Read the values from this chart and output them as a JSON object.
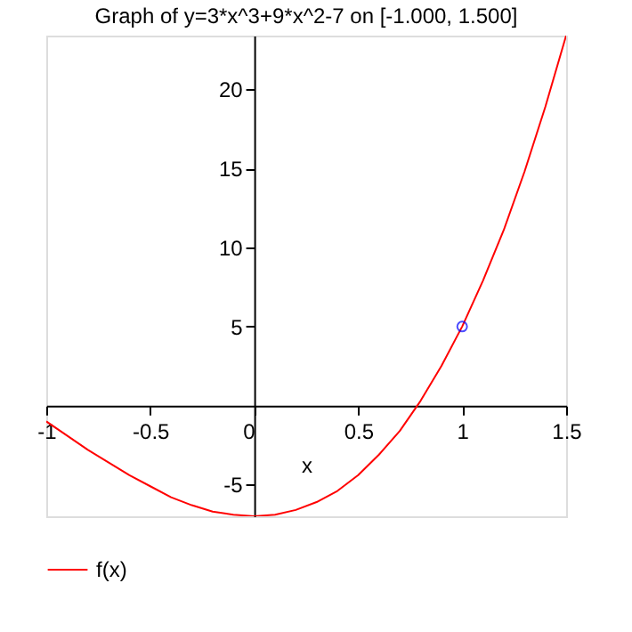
{
  "chart_data": {
    "type": "line",
    "title": "Graph of y=3*x^3+9*x^2-7 on [-1.000, 1.500]",
    "xlabel": "x",
    "xlim": [
      -1,
      1.5
    ],
    "ylim": [
      -7,
      23.4
    ],
    "xticks": [
      -1,
      -0.5,
      0,
      0.5,
      1,
      1.5
    ],
    "yticks": [
      -5,
      5,
      10,
      15,
      20
    ],
    "grid": false,
    "legend": "bottom",
    "series": [
      {
        "name": "f(x)",
        "color": "#ff0000",
        "line_style": "solid",
        "x": [
          -1,
          -0.9,
          -0.8,
          -0.7,
          -0.6,
          -0.5,
          -0.4,
          -0.3,
          -0.2,
          -0.1,
          0,
          0.1,
          0.2,
          0.3,
          0.4,
          0.5,
          0.6,
          0.7,
          0.8,
          0.9,
          1,
          1.1,
          1.2,
          1.3,
          1.4,
          1.5
        ],
        "values": [
          -1,
          -1.9,
          -2.8,
          -3.6,
          -4.4,
          -5.1,
          -5.8,
          -6.3,
          -6.7,
          -6.9,
          -7,
          -6.9,
          -6.6,
          -6.1,
          -5.4,
          -4.4,
          -3.1,
          -1.6,
          0.3,
          2.5,
          5,
          7.9,
          11.1,
          14.8,
          18.9,
          23.4
        ]
      },
      {
        "type": "scatter",
        "color": "#0000ff",
        "marker": "circle",
        "x": [
          1
        ],
        "values": [
          5
        ]
      }
    ]
  }
}
